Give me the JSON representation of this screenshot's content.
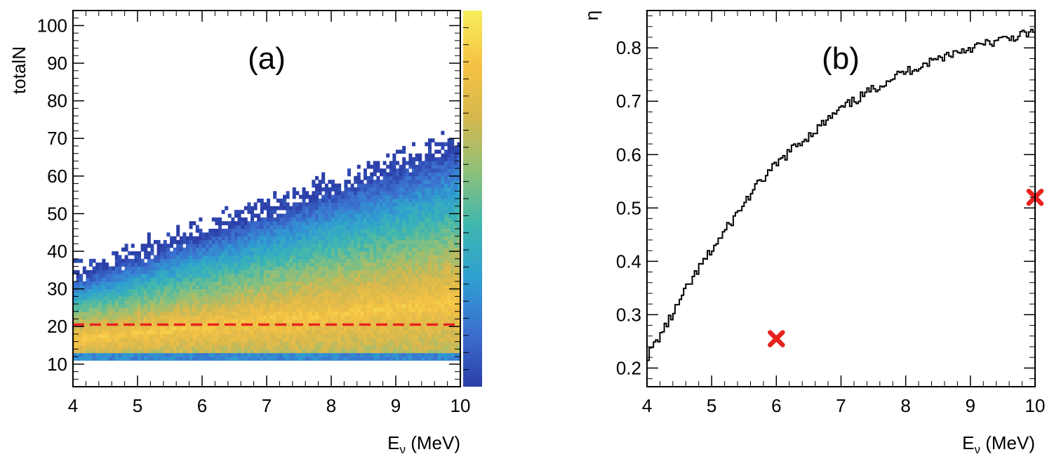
{
  "chart_data": [
    {
      "type": "heatmap",
      "panel_label": "(a)",
      "xlabel_main": "E",
      "xlabel_sub": "ν",
      "xlabel_unit": " (MeV)",
      "ylabel": "totalN",
      "xlim": [
        4,
        10
      ],
      "ylim": [
        4,
        104
      ],
      "x_ticks": [
        4,
        5,
        6,
        7,
        8,
        9,
        10
      ],
      "y_ticks": [
        10,
        20,
        30,
        40,
        50,
        60,
        70,
        80,
        90,
        100
      ],
      "cut_line": {
        "y": 20.5,
        "color": "#e8221f",
        "style": "dashed"
      },
      "colorbar": {
        "stops": [
          "#2b3fa8",
          "#3c6fd0",
          "#2f9ed1",
          "#3fb7b0",
          "#8dc07a",
          "#d6b84e",
          "#f5c244",
          "#f7ee5a"
        ],
        "scale": "linear"
      },
      "density_model": {
        "band_lower_y": 12,
        "band_upper_y_at_xmin": 33,
        "band_upper_y_at_xmax": 68,
        "peak_y_at_xmin": 17,
        "peak_y_at_xmax": 27
      }
    },
    {
      "type": "line",
      "step": true,
      "panel_label": "(b)",
      "xlabel_main": "E",
      "xlabel_sub": "ν",
      "xlabel_unit": " (MeV)",
      "ylabel": "η",
      "xlim": [
        4,
        10
      ],
      "ylim": [
        0.165,
        0.87
      ],
      "x_ticks": [
        4,
        5,
        6,
        7,
        8,
        9,
        10
      ],
      "y_ticks": [
        0.2,
        0.3,
        0.4,
        0.5,
        0.6,
        0.7,
        0.8
      ],
      "series": [
        {
          "color": "#000000",
          "x": [
            4.0,
            4.2,
            4.4,
            4.6,
            4.8,
            5.0,
            5.2,
            5.4,
            5.6,
            5.8,
            6.0,
            6.2,
            6.4,
            6.6,
            6.8,
            7.0,
            7.2,
            7.4,
            7.6,
            7.8,
            8.0,
            8.2,
            8.4,
            8.6,
            8.8,
            9.0,
            9.2,
            9.4,
            9.6,
            9.8,
            10.0
          ],
          "y": [
            0.22,
            0.26,
            0.3,
            0.345,
            0.385,
            0.42,
            0.455,
            0.49,
            0.525,
            0.555,
            0.58,
            0.605,
            0.625,
            0.645,
            0.665,
            0.685,
            0.7,
            0.715,
            0.73,
            0.745,
            0.755,
            0.765,
            0.775,
            0.785,
            0.793,
            0.8,
            0.806,
            0.812,
            0.818,
            0.824,
            0.83
          ]
        }
      ],
      "markers": [
        {
          "x": 6.0,
          "y": 0.255,
          "shape": "x",
          "color": "#e8221f"
        },
        {
          "x": 10.0,
          "y": 0.52,
          "shape": "x",
          "color": "#e8221f"
        }
      ]
    }
  ]
}
